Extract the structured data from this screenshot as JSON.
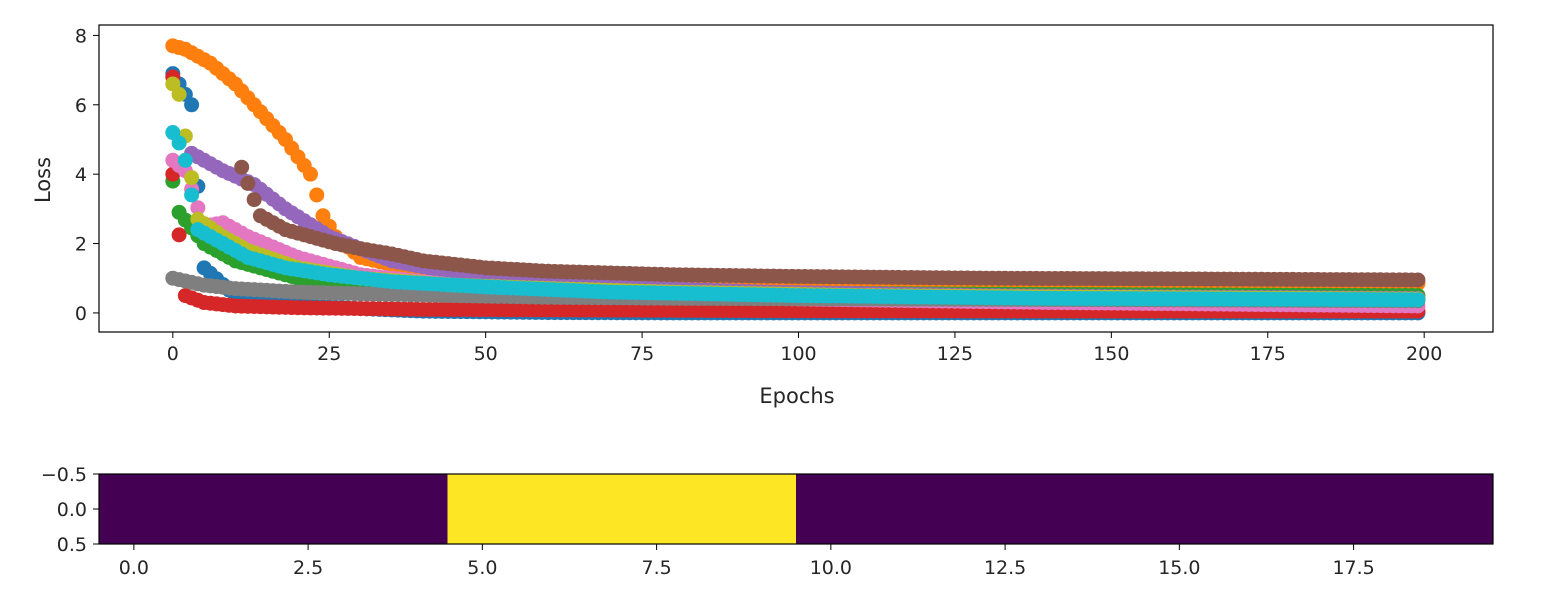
{
  "chart_data": [
    {
      "type": "scatter",
      "xlabel": "Epochs",
      "ylabel": "Loss",
      "xlim": [
        -11.8,
        211.0
      ],
      "ylim": [
        -0.55,
        8.3
      ],
      "xticks": [
        0,
        25,
        50,
        75,
        100,
        125,
        150,
        175,
        200
      ],
      "yticks": [
        0,
        2,
        4,
        6,
        8
      ],
      "grid": false,
      "legend": "none",
      "series": [
        {
          "color": "#1f77b4",
          "x": [
            0,
            3,
            5,
            10,
            20,
            40,
            60,
            80,
            100,
            130,
            160,
            190,
            199
          ],
          "y": [
            6.9,
            6.0,
            1.3,
            0.5,
            0.2,
            0.05,
            0.01,
            0.0,
            0.0,
            0.0,
            0.0,
            0.0,
            0.0
          ]
        },
        {
          "color": "#ff7f0e",
          "x": [
            0,
            2,
            4,
            6,
            8,
            10,
            12,
            14,
            16,
            18,
            20,
            22,
            24,
            26,
            30,
            40,
            60,
            90,
            120,
            150,
            180,
            199
          ],
          "y": [
            7.7,
            7.6,
            7.4,
            7.2,
            6.9,
            6.6,
            6.2,
            5.8,
            5.4,
            5.0,
            4.5,
            4.0,
            2.8,
            2.2,
            1.6,
            1.2,
            1.0,
            0.95,
            0.9,
            0.88,
            0.86,
            0.85
          ]
        },
        {
          "color": "#2ca02c",
          "x": [
            0,
            1,
            5,
            10,
            20,
            30,
            50,
            80,
            120,
            160,
            199
          ],
          "y": [
            3.8,
            2.9,
            2.0,
            1.5,
            1.0,
            0.8,
            0.65,
            0.6,
            0.55,
            0.52,
            0.5
          ]
        },
        {
          "color": "#d62728",
          "x": [
            0,
            0,
            2,
            5,
            10,
            20,
            40,
            70,
            100,
            150,
            199
          ],
          "y": [
            6.8,
            4.0,
            0.5,
            0.3,
            0.2,
            0.15,
            0.1,
            0.08,
            0.06,
            0.05,
            0.05
          ]
        },
        {
          "color": "#9467bd",
          "x": [
            3,
            8,
            13,
            18,
            25,
            35,
            50,
            70,
            95,
            130,
            170,
            199
          ],
          "y": [
            4.6,
            4.1,
            3.7,
            3.0,
            2.2,
            1.5,
            1.0,
            0.75,
            0.6,
            0.5,
            0.45,
            0.42
          ]
        },
        {
          "color": "#8c564b",
          "x": [
            11,
            14,
            18,
            22,
            26,
            30,
            35,
            40,
            50,
            60,
            80,
            100,
            130,
            160,
            199
          ],
          "y": [
            4.2,
            2.8,
            2.4,
            2.2,
            2.0,
            1.85,
            1.7,
            1.5,
            1.3,
            1.2,
            1.1,
            1.05,
            1.0,
            0.98,
            0.95
          ]
        },
        {
          "color": "#e377c2",
          "x": [
            0,
            2,
            5,
            8,
            12,
            20,
            30,
            45,
            60,
            80,
            100,
            140,
            199
          ],
          "y": [
            4.4,
            4.1,
            2.5,
            2.6,
            2.2,
            1.6,
            1.1,
            0.8,
            0.6,
            0.5,
            0.4,
            0.3,
            0.2
          ]
        },
        {
          "color": "#7f7f7f",
          "x": [
            0,
            5,
            10,
            15,
            20,
            30,
            45,
            60,
            80,
            110,
            150,
            199
          ],
          "y": [
            1.0,
            0.8,
            0.7,
            0.65,
            0.6,
            0.55,
            0.5,
            0.45,
            0.42,
            0.4,
            0.38,
            0.35
          ]
        },
        {
          "color": "#bcbd22",
          "x": [
            0,
            1,
            4,
            8,
            12,
            20,
            30,
            45,
            60,
            80,
            110,
            150,
            199
          ],
          "y": [
            6.6,
            6.3,
            2.7,
            2.2,
            1.8,
            1.3,
            1.0,
            0.8,
            0.7,
            0.6,
            0.5,
            0.45,
            0.4
          ]
        },
        {
          "color": "#17becf",
          "x": [
            0,
            1,
            2,
            4,
            8,
            12,
            18,
            25,
            35,
            50,
            70,
            100,
            140,
            170,
            199
          ],
          "y": [
            5.2,
            4.9,
            4.4,
            2.4,
            2.0,
            1.6,
            1.3,
            1.1,
            0.9,
            0.75,
            0.6,
            0.5,
            0.42,
            0.4,
            0.38
          ]
        }
      ]
    },
    {
      "type": "heatmap",
      "values": [
        0,
        0,
        0,
        0,
        0,
        1,
        1,
        1,
        1,
        1,
        0,
        0,
        0,
        0,
        0,
        0,
        0,
        0,
        0,
        0
      ],
      "colors": {
        "low": "#440154",
        "high": "#fde725"
      },
      "xlim": [
        -0.5,
        19.5
      ],
      "ylim": [
        0.5,
        -0.5
      ],
      "xticks": [
        "0.0",
        "2.5",
        "5.0",
        "7.5",
        "10.0",
        "12.5",
        "15.0",
        "17.5"
      ],
      "yticks": [
        "−0.5",
        "0.0",
        "0.5"
      ],
      "ytick_values": [
        -0.5,
        0.0,
        0.5
      ]
    }
  ]
}
